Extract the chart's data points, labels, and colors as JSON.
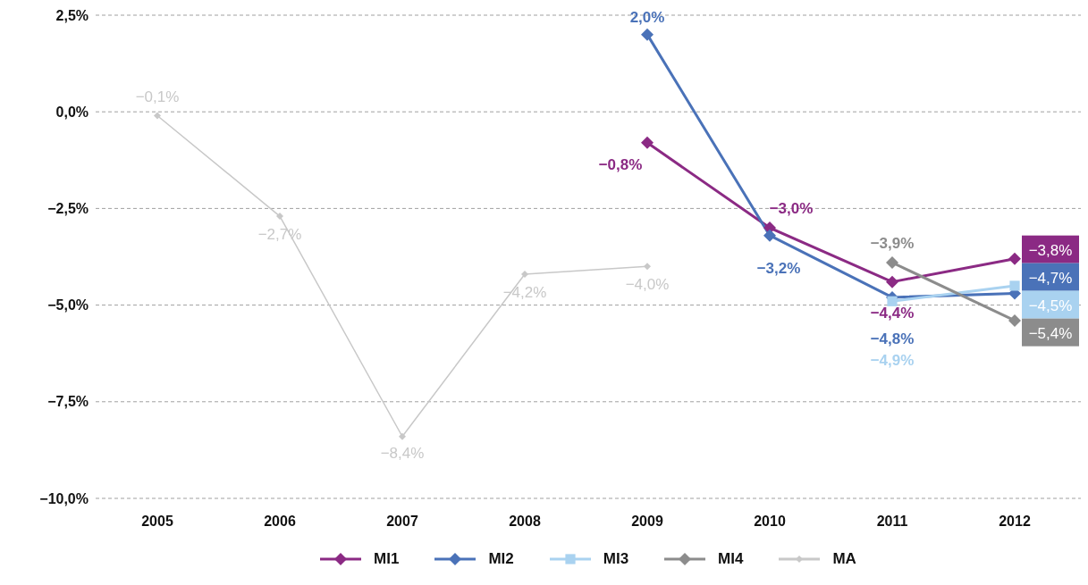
{
  "chart_data": {
    "type": "line",
    "categories": [
      "2005",
      "2006",
      "2007",
      "2008",
      "2009",
      "2010",
      "2011",
      "2012"
    ],
    "ylim": [
      -10,
      2.5
    ],
    "yticks": [
      {
        "value": -10,
        "label": "−10,0%"
      },
      {
        "value": -7.5,
        "label": "−7,5%"
      },
      {
        "value": -5,
        "label": "−5,0%"
      },
      {
        "value": -2.5,
        "label": "−2,5%"
      },
      {
        "value": 0,
        "label": "0,0%"
      },
      {
        "value": 2.5,
        "label": "2,5%"
      }
    ],
    "grid": "y",
    "legend": "bottom",
    "series": [
      {
        "name": "MI1",
        "color": "#8b2a84",
        "marker": "diamond",
        "values": [
          null,
          null,
          null,
          null,
          -0.8,
          -3.0,
          -4.4,
          -3.8
        ],
        "value_labels": [
          null,
          null,
          null,
          null,
          "−0,8%",
          "−3,0%",
          "−4,4%",
          "−3,8%"
        ]
      },
      {
        "name": "MI2",
        "color": "#4a72b8",
        "marker": "diamond",
        "values": [
          null,
          null,
          null,
          null,
          2.0,
          -3.2,
          -4.8,
          -4.7
        ],
        "value_labels": [
          null,
          null,
          null,
          null,
          "2,0%",
          "−3,2%",
          "−4,8%",
          "−4,7%"
        ]
      },
      {
        "name": "MI3",
        "color": "#a9d2f0",
        "marker": "square",
        "values": [
          null,
          null,
          null,
          null,
          null,
          null,
          -4.9,
          -4.5
        ],
        "value_labels": [
          null,
          null,
          null,
          null,
          null,
          null,
          "−4,9%",
          "−4,5%"
        ]
      },
      {
        "name": "MI4",
        "color": "#8c8c8c",
        "marker": "diamond",
        "values": [
          null,
          null,
          null,
          null,
          null,
          null,
          -3.9,
          -5.4
        ],
        "value_labels": [
          null,
          null,
          null,
          null,
          null,
          null,
          "−3,9%",
          "−5,4%"
        ]
      },
      {
        "name": "MA",
        "color": "#c8c8c8",
        "marker": "diamond",
        "values": [
          -0.1,
          -2.7,
          -8.4,
          -4.2,
          -4.0,
          null,
          null,
          null
        ],
        "value_labels": [
          "−0,1%",
          "−2,7%",
          "−8,4%",
          "−4,2%",
          "−4,0%",
          null,
          null,
          null
        ]
      }
    ]
  }
}
